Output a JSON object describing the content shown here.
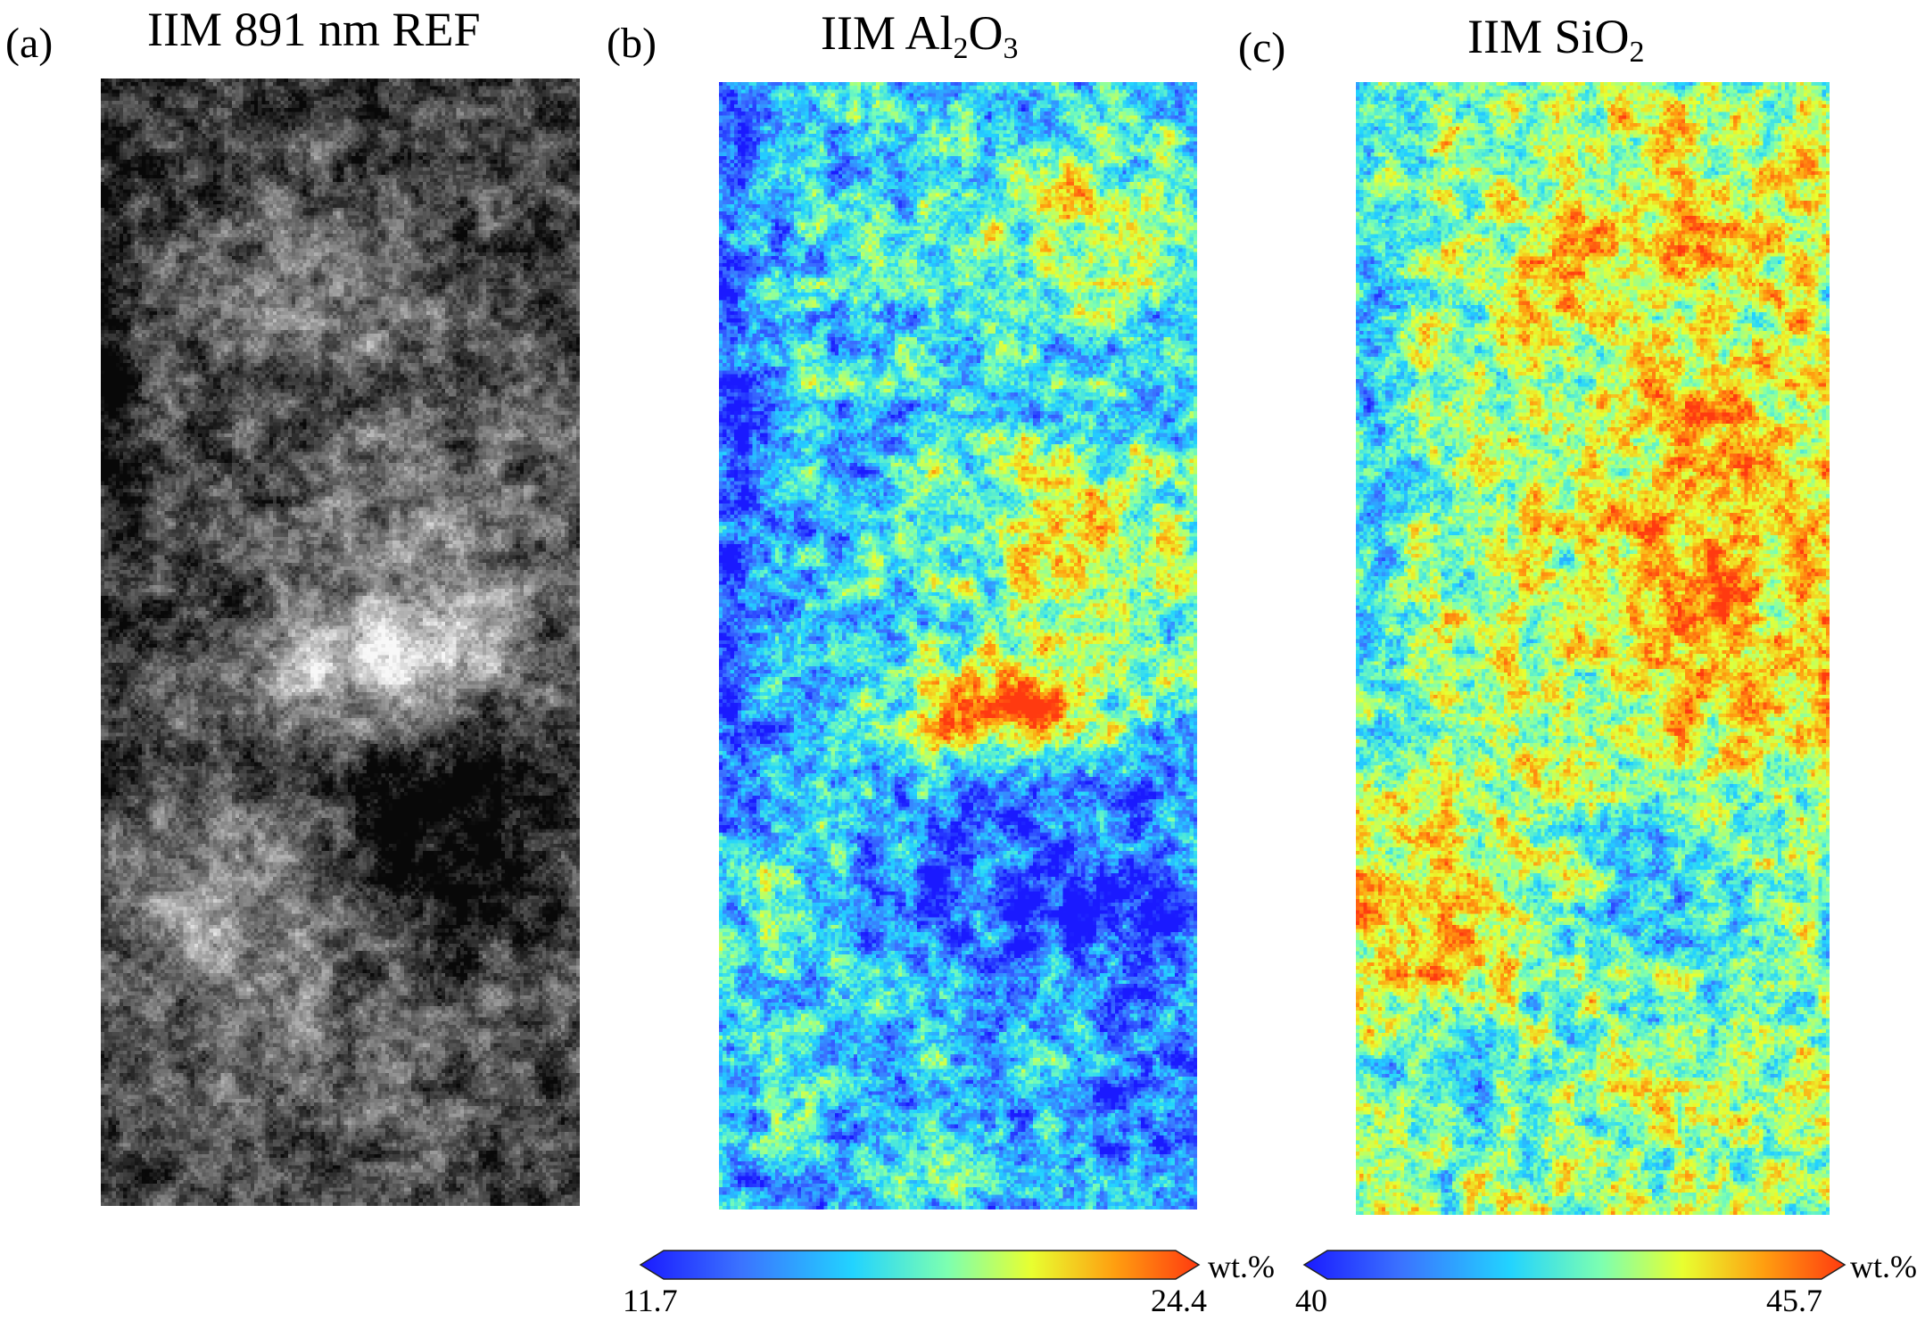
{
  "panels": [
    {
      "id": "a",
      "label": "(a)",
      "title_main": "IIM 891 nm REF",
      "type": "grayscale"
    },
    {
      "id": "b",
      "label": "(b)",
      "title_prefix": "IIM Al",
      "title_sub1": "2",
      "title_mid": "O",
      "title_sub2": "3",
      "type": "jet",
      "colorbar": {
        "min": "11.7",
        "max": "24.4",
        "unit": "wt.%"
      }
    },
    {
      "id": "c",
      "label": "(c)",
      "title_prefix": "IIM SiO",
      "title_sub1": "2",
      "type": "jet",
      "colorbar": {
        "min": "40",
        "max": "45.7",
        "unit": "wt.%"
      }
    }
  ],
  "colors": {
    "jet_stops": [
      "#1a1aff",
      "#3b73ff",
      "#22d3ff",
      "#7dffb0",
      "#e8ff30",
      "#ff9e10",
      "#ff3a10"
    ],
    "gray_dark": "#0a0a0a",
    "gray_light": "#ffffff"
  }
}
